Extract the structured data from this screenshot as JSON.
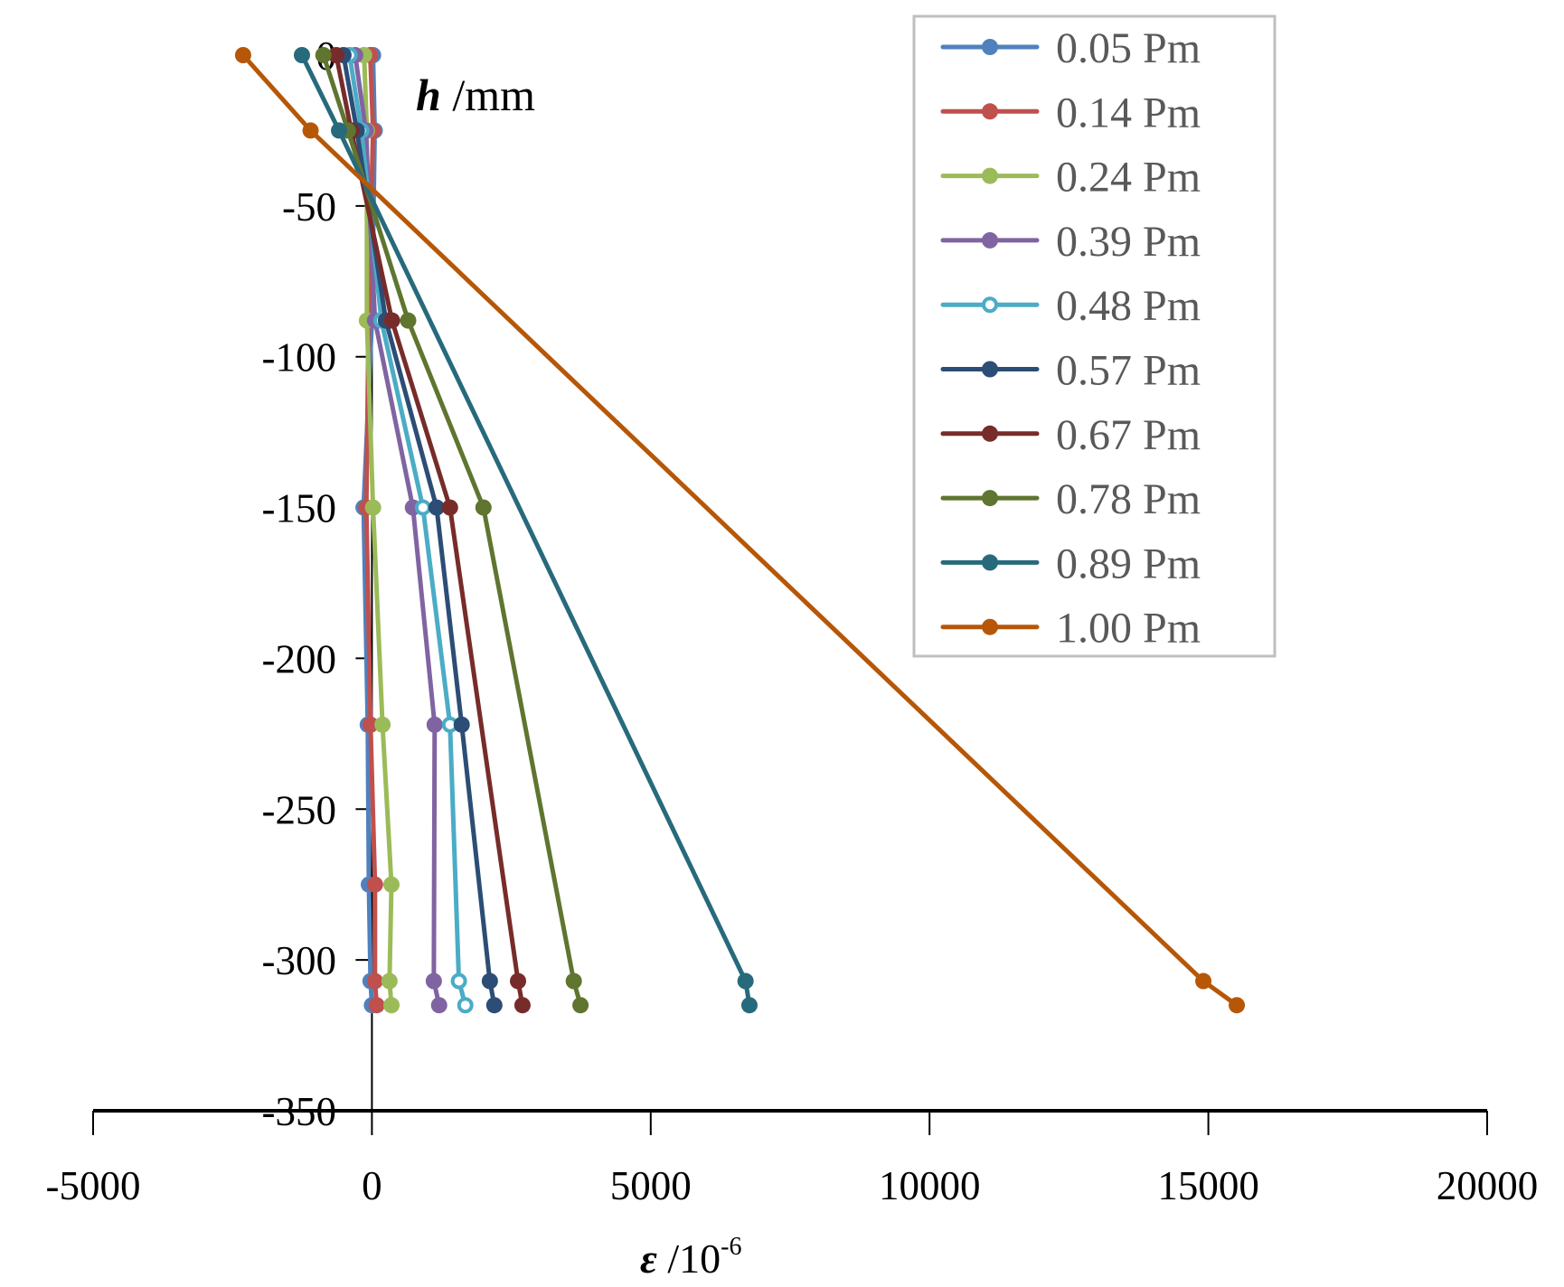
{
  "chart_data": {
    "type": "line",
    "title": "",
    "xlabel": {
      "symbol": "ε",
      "unit": " /10",
      "exponent": "-6"
    },
    "ylabel": {
      "symbol": "h",
      "unit": " /mm"
    },
    "xlim": [
      -5000,
      20000
    ],
    "ylim": [
      -350,
      0
    ],
    "xticks": [
      -5000,
      0,
      5000,
      10000,
      15000,
      20000
    ],
    "yticks": [
      0,
      -50,
      -100,
      -150,
      -200,
      -250,
      -300,
      -350
    ],
    "grid": false,
    "legend_position": "top-right",
    "series": [
      {
        "name": "0.05 Pm",
        "color": "#4F81BD",
        "hollow": false,
        "points": [
          [
            20,
            0
          ],
          [
            50,
            -25
          ],
          [
            0,
            -88
          ],
          [
            -150,
            -150
          ],
          [
            -75,
            -222
          ],
          [
            -55,
            -275
          ],
          [
            -25,
            -307
          ],
          [
            0,
            -315
          ]
        ]
      },
      {
        "name": "0.14 Pm",
        "color": "#C0504D",
        "hollow": false,
        "points": [
          [
            -30,
            0
          ],
          [
            20,
            -25
          ],
          [
            -60,
            -88
          ],
          [
            -100,
            -150
          ],
          [
            -25,
            -222
          ],
          [
            55,
            -275
          ],
          [
            55,
            -307
          ],
          [
            85,
            -315
          ]
        ]
      },
      {
        "name": "0.24 Pm",
        "color": "#9BBB59",
        "hollow": false,
        "points": [
          [
            -140,
            0
          ],
          [
            -90,
            -25
          ],
          [
            -90,
            -88
          ],
          [
            20,
            -150
          ],
          [
            190,
            -222
          ],
          [
            350,
            -275
          ],
          [
            315,
            -307
          ],
          [
            350,
            -315
          ]
        ]
      },
      {
        "name": "0.39 Pm",
        "color": "#8064A2",
        "hollow": false,
        "points": [
          [
            -300,
            0
          ],
          [
            -110,
            -25
          ],
          [
            55,
            -88
          ],
          [
            735,
            -150
          ],
          [
            1125,
            -222
          ],
          [
            1110,
            -307
          ],
          [
            1205,
            -315
          ]
        ]
      },
      {
        "name": "0.48 Pm",
        "color": "#4BACC6",
        "hollow": true,
        "points": [
          [
            -400,
            0
          ],
          [
            -190,
            -25
          ],
          [
            170,
            -88
          ],
          [
            915,
            -150
          ],
          [
            1400,
            -222
          ],
          [
            1560,
            -307
          ],
          [
            1675,
            -315
          ]
        ]
      },
      {
        "name": "0.57 Pm",
        "color": "#2C4D75",
        "hollow": false,
        "points": [
          [
            -510,
            0
          ],
          [
            -270,
            -25
          ],
          [
            250,
            -88
          ],
          [
            1160,
            -150
          ],
          [
            1610,
            -222
          ],
          [
            2115,
            -307
          ],
          [
            2195,
            -315
          ]
        ]
      },
      {
        "name": "0.67 Pm",
        "color": "#772C2A",
        "hollow": false,
        "points": [
          [
            -640,
            0
          ],
          [
            -370,
            -25
          ],
          [
            360,
            -88
          ],
          [
            1400,
            -150
          ],
          [
            2620,
            -307
          ],
          [
            2700,
            -315
          ]
        ]
      },
      {
        "name": "0.78 Pm",
        "color": "#5F7530",
        "hollow": false,
        "points": [
          [
            -870,
            0
          ],
          [
            -430,
            -25
          ],
          [
            650,
            -88
          ],
          [
            2000,
            -150
          ],
          [
            3620,
            -307
          ],
          [
            3740,
            -315
          ]
        ]
      },
      {
        "name": "0.89 Pm",
        "color": "#276A7C",
        "hollow": false,
        "points": [
          [
            -1255,
            0
          ],
          [
            -590,
            -25
          ],
          [
            6700,
            -307
          ],
          [
            6770,
            -315
          ]
        ]
      },
      {
        "name": "1.00 Pm",
        "color": "#B65708",
        "hollow": false,
        "points": [
          [
            -2310,
            0
          ],
          [
            -1100,
            -25
          ],
          [
            14910,
            -307
          ],
          [
            15510,
            -315
          ]
        ]
      }
    ]
  }
}
